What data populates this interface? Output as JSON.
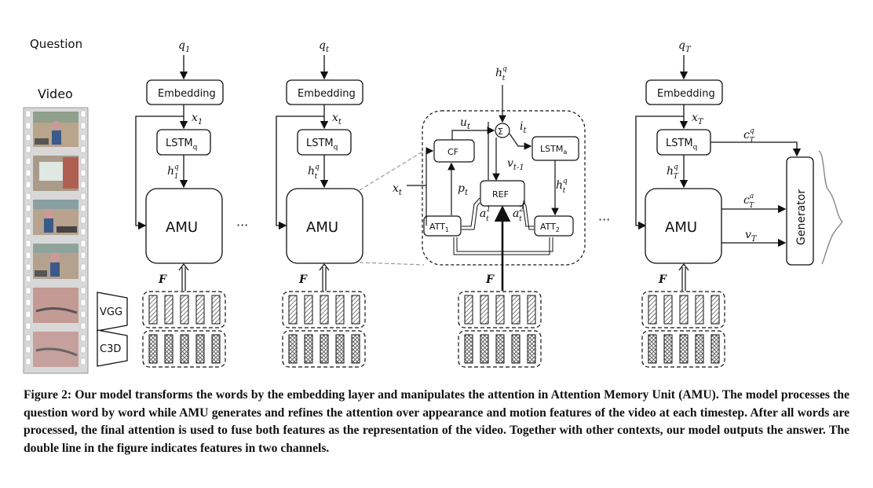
{
  "labels": {
    "question": "Question",
    "video": "Video",
    "embedding": "Embedding",
    "lstm_q": "LSTM",
    "lstm_q_sub": "q",
    "lstm_a": "LSTM",
    "lstm_a_sub": "a",
    "amu": "AMU",
    "ellipsis": "···",
    "cf": "CF",
    "ref": "REF",
    "att1": "ATT",
    "att1_sub": "1",
    "att2": "ATT",
    "att2_sub": "2",
    "sigma": "Σ",
    "generator": "Generator",
    "vgg": "VGG",
    "c3d": "C3D",
    "F": "F",
    "q1": "q",
    "q1_sub": "1",
    "qt": "q",
    "qt_sub": "t",
    "qT": "q",
    "qT_sub": "T",
    "x1": "x",
    "x1_sub": "1",
    "xt": "x",
    "xt_sub": "t",
    "xT": "x",
    "xT_sub": "T",
    "h": "h",
    "h_sup": "q",
    "h1_sub": "1",
    "ht_sub": "t",
    "hT_sub": "T",
    "u": "u",
    "u_sub": "t",
    "i": "i",
    "i_sub": "t",
    "p": "p",
    "p_sub": "t",
    "v": "v",
    "v_prev_sub": "t-1",
    "vT_sub": "T",
    "a": "a",
    "a1_sup": "1",
    "a2_sup": "2",
    "a_sub": "t",
    "c": "c",
    "cq_sup": "q",
    "ca_sup": "a",
    "c_sub": "T"
  },
  "caption": "Figure 2: Our model transforms the words by the embedding layer and manipulates the attention in Attention Memory Unit (AMU). The model processes the question word by word while AMU generates and refines the attention over appearance and motion features of the video at each timestep. After all words are processed, the final attention is used to fuse both features as the representation of the video. Together with other contexts, our model outputs the answer. The double line in the figure indicates features in two channels."
}
